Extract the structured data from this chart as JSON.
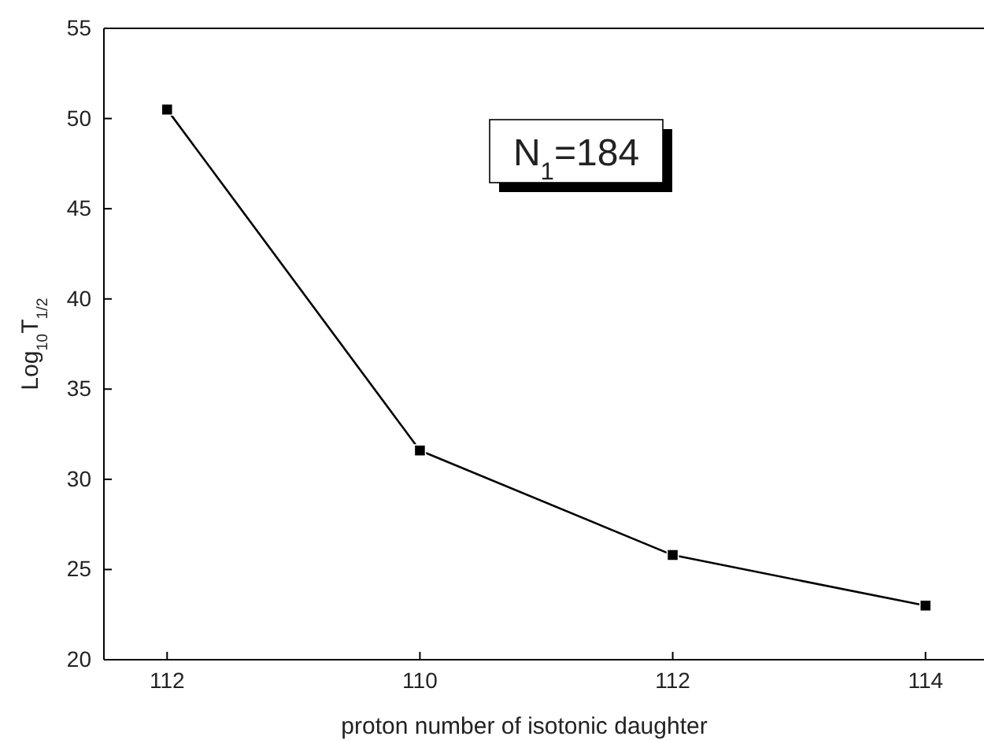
{
  "chart_data": {
    "type": "line",
    "xlabel": "proton number of isotonic daughter",
    "ylabel": "Log$_{10}$T$_{1/2}$",
    "categories": [
      "112",
      "110",
      "112",
      "114"
    ],
    "series": [
      {
        "color": "#000000",
        "values": [
          50.5,
          31.6,
          25.8,
          23.0
        ]
      }
    ],
    "ylim": [
      20,
      55
    ],
    "yticks": [
      20,
      25,
      30,
      35,
      40,
      45,
      50,
      55
    ],
    "marker": "square",
    "line_style": "solid",
    "annotations": [
      "N$_{1}$=184"
    ]
  }
}
